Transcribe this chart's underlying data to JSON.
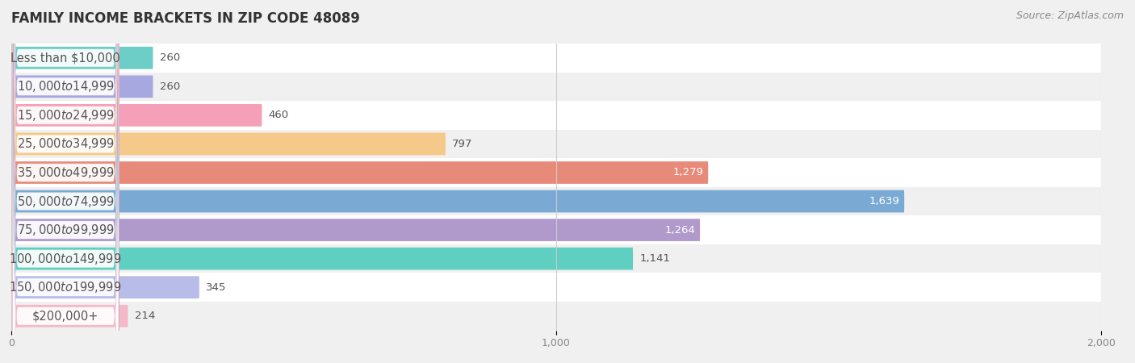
{
  "title": "FAMILY INCOME BRACKETS IN ZIP CODE 48089",
  "source": "Source: ZipAtlas.com",
  "categories": [
    "Less than $10,000",
    "$10,000 to $14,999",
    "$15,000 to $24,999",
    "$25,000 to $34,999",
    "$35,000 to $49,999",
    "$50,000 to $74,999",
    "$75,000 to $99,999",
    "$100,000 to $149,999",
    "$150,000 to $199,999",
    "$200,000+"
  ],
  "values": [
    260,
    260,
    460,
    797,
    1279,
    1639,
    1264,
    1141,
    345,
    214
  ],
  "bar_colors": [
    "#6dcdc7",
    "#a8a8e0",
    "#f5a0b8",
    "#f5c98a",
    "#e88a7a",
    "#7aaad4",
    "#b09acc",
    "#5ecfc0",
    "#b8bce8",
    "#f4b8c8"
  ],
  "value_label_inside": [
    false,
    false,
    false,
    false,
    true,
    true,
    true,
    false,
    false,
    false
  ],
  "xlim": [
    0,
    2000
  ],
  "xticks": [
    0,
    1000,
    2000
  ],
  "background_color": "#f0f0f0",
  "row_colors": [
    "#ffffff",
    "#f0f0f0"
  ],
  "title_fontsize": 12,
  "source_fontsize": 9,
  "label_fontsize": 10.5,
  "value_fontsize": 9.5
}
